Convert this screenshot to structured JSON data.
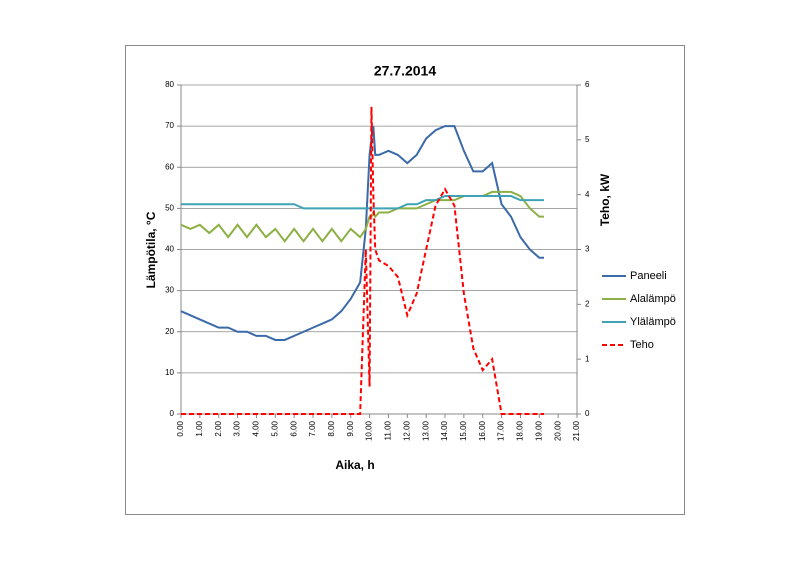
{
  "chart_data": {
    "type": "line",
    "title": "27.7.2014",
    "x_label": "Aika, h",
    "y_label": "Lämpötila, °C",
    "y2_label": "Teho, kW",
    "x": [
      0,
      0.5,
      1,
      1.5,
      2,
      2.5,
      3,
      3.5,
      4,
      4.5,
      5,
      5.5,
      6,
      6.5,
      7,
      7.5,
      8,
      8.5,
      9,
      9.5,
      9.8,
      10,
      10.1,
      10.2,
      10.3,
      10.5,
      11,
      11.5,
      12,
      12.5,
      13,
      13.5,
      14,
      14.5,
      15,
      15.5,
      16,
      16.5,
      17,
      17.5,
      18,
      18.5,
      19,
      19.25
    ],
    "series": [
      {
        "name": "Paneeli",
        "color": "#3a6aa8",
        "values": [
          25,
          24,
          23,
          22,
          21,
          21,
          20,
          20,
          19,
          19,
          18,
          18,
          19,
          20,
          21,
          22,
          23,
          25,
          28,
          32,
          45,
          63,
          67,
          70,
          63,
          63,
          64,
          63,
          61,
          63,
          67,
          69,
          70,
          70,
          64,
          59,
          59,
          61,
          51,
          48,
          43,
          40,
          38,
          38
        ]
      },
      {
        "name": "Alalämpö",
        "color": "#8db045",
        "values": [
          46,
          45,
          46,
          44,
          46,
          43,
          46,
          43,
          46,
          43,
          45,
          42,
          45,
          42,
          45,
          42,
          45,
          42,
          45,
          43,
          45,
          48,
          48,
          49,
          48,
          49,
          49,
          50,
          50,
          50,
          51,
          52,
          52,
          52,
          53,
          53,
          53,
          54,
          54,
          54,
          53,
          50,
          48,
          48
        ]
      },
      {
        "name": "Ylälämpö",
        "color": "#3fa3b5",
        "values": [
          51,
          51,
          51,
          51,
          51,
          51,
          51,
          51,
          51,
          51,
          51,
          51,
          51,
          50,
          50,
          50,
          50,
          50,
          50,
          50,
          50,
          50,
          50,
          50,
          50,
          50,
          50,
          50,
          51,
          51,
          52,
          52,
          53,
          53,
          53,
          53,
          53,
          53,
          53,
          53,
          52,
          52,
          52,
          52
        ]
      },
      {
        "name": "Teho",
        "color": "#ff0000",
        "axis": "y2",
        "dashed": true,
        "values": [
          0,
          0,
          0,
          0,
          0,
          0,
          0,
          0,
          0,
          0,
          0,
          0,
          0,
          0,
          0,
          0,
          0,
          0,
          0,
          0,
          3,
          0.5,
          5.6,
          4,
          3,
          2.8,
          2.7,
          2.5,
          1.8,
          2.2,
          3,
          3.8,
          4.1,
          3.8,
          2.2,
          1.2,
          0.8,
          1,
          0,
          0,
          0,
          0,
          0,
          0
        ]
      }
    ],
    "xlim": [
      0,
      21
    ],
    "xticks": [
      {
        "value": 0,
        "label": "0.00"
      },
      {
        "value": 1,
        "label": "1.00"
      },
      {
        "value": 2,
        "label": "2.00"
      },
      {
        "value": 3,
        "label": "3.00"
      },
      {
        "value": 4,
        "label": "4.00"
      },
      {
        "value": 5,
        "label": "5.00"
      },
      {
        "value": 6,
        "label": "6.00"
      },
      {
        "value": 7,
        "label": "7.00"
      },
      {
        "value": 8,
        "label": "8.00"
      },
      {
        "value": 9,
        "label": "9.00"
      },
      {
        "value": 10,
        "label": "10.00"
      },
      {
        "value": 11,
        "label": "11.00"
      },
      {
        "value": 12,
        "label": "12.00"
      },
      {
        "value": 13,
        "label": "13.00"
      },
      {
        "value": 14,
        "label": "14.00"
      },
      {
        "value": 15,
        "label": "15.00"
      },
      {
        "value": 16,
        "label": "16.00"
      },
      {
        "value": 17,
        "label": "17.00"
      },
      {
        "value": 18,
        "label": "18.00"
      },
      {
        "value": 19,
        "label": "19.00"
      },
      {
        "value": 20,
        "label": "20.00"
      },
      {
        "value": 21,
        "label": "21.00"
      }
    ],
    "ylim": [
      0,
      80
    ],
    "yticks": [
      0,
      10,
      20,
      30,
      40,
      50,
      60,
      70,
      80
    ],
    "y2lim": [
      0,
      6
    ],
    "y2ticks": [
      0,
      1,
      2,
      3,
      4,
      5,
      6
    ],
    "grid": true,
    "legend": "right"
  }
}
